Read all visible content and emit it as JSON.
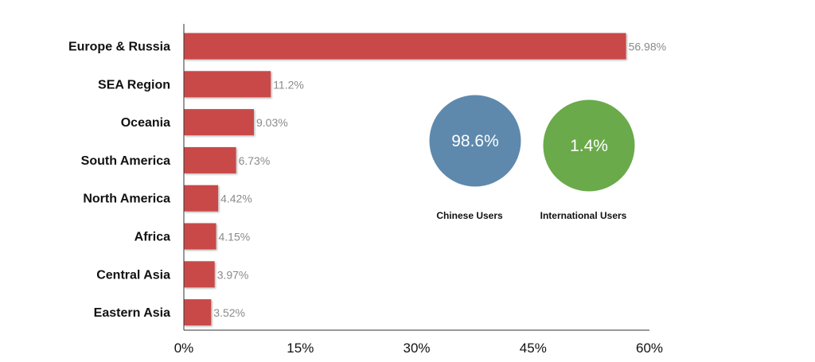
{
  "chart_data": [
    {
      "type": "bar",
      "orientation": "horizontal",
      "title": "",
      "xlabel": "",
      "ylabel": "",
      "categories": [
        "Europe & Russia",
        "SEA Region",
        "Oceania",
        "South America",
        "North America",
        "Africa",
        "Central Asia",
        "Eastern Asia"
      ],
      "values": [
        56.98,
        11.2,
        9.03,
        6.73,
        4.42,
        4.15,
        3.97,
        3.52
      ],
      "value_labels": [
        "56.98%",
        "11.2%",
        "9.03%",
        "6.73%",
        "4.42%",
        "4.15%",
        "3.97%",
        "3.52%"
      ],
      "xlim": [
        0,
        60
      ],
      "xticks": [
        0,
        15,
        30,
        45,
        60
      ],
      "xtick_labels": [
        "0%",
        "15%",
        "30%",
        "45%",
        "60%"
      ],
      "grid": false,
      "bar_color": "#c94a4a"
    },
    {
      "type": "bubble",
      "items": [
        {
          "label": "Chinese Users",
          "value": 98.6,
          "value_label": "98.6%",
          "color": "#5e89ad"
        },
        {
          "label": "International Users",
          "value": 1.4,
          "value_label": "1.4%",
          "color": "#6aaa4a"
        }
      ]
    }
  ]
}
